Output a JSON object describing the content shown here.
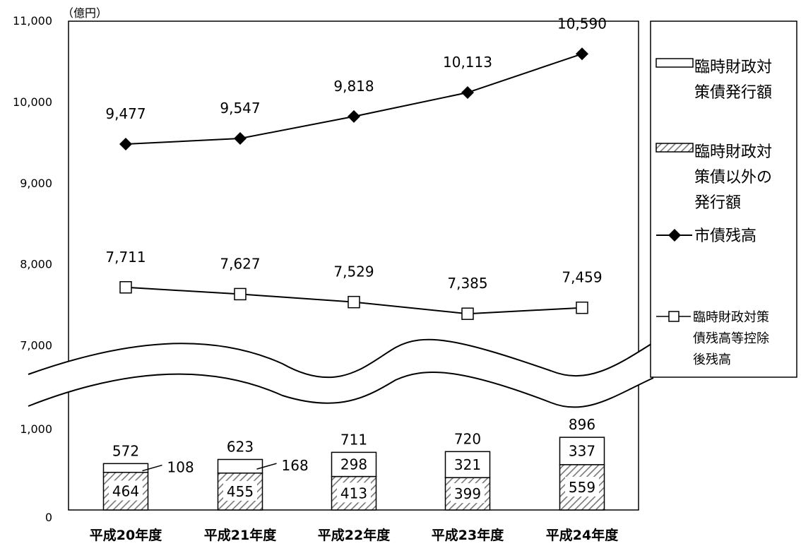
{
  "chart_data": {
    "type": "bar+line",
    "unit_label": "（億円）",
    "categories": [
      "平成20年度",
      "平成21年度",
      "平成22年度",
      "平成23年度",
      "平成24年度"
    ],
    "y_ticks_upper": [
      "11,000",
      "10,000",
      "9,000",
      "8,000",
      "7,000"
    ],
    "y_ticks_lower": [
      "1,000",
      "0"
    ],
    "bar_series": [
      {
        "name": "臨時財政対策債以外の発行額",
        "pattern": "hatched",
        "values": [
          464,
          455,
          413,
          399,
          559
        ],
        "labels": [
          "464",
          "455",
          "413",
          "399",
          "559"
        ]
      },
      {
        "name": "臨時財政対策債発行額",
        "pattern": "white",
        "values": [
          108,
          168,
          298,
          321,
          337
        ],
        "labels": [
          "108",
          "168",
          "298",
          "321",
          "337"
        ]
      }
    ],
    "bar_totals": [
      572,
      623,
      711,
      720,
      896
    ],
    "bar_total_labels": [
      "572",
      "623",
      "711",
      "720",
      "896"
    ],
    "line_series": [
      {
        "name": "市債残高",
        "marker": "filled-diamond",
        "values": [
          9477,
          9547,
          9818,
          10113,
          10590
        ],
        "labels": [
          "9,477",
          "9,547",
          "9,818",
          "10,113",
          "10,590"
        ]
      },
      {
        "name": "臨時財政対策債残高等控除後残高",
        "marker": "hollow-square",
        "values": [
          7711,
          7627,
          7529,
          7385,
          7459
        ],
        "labels": [
          "7,711",
          "7,627",
          "7,529",
          "7,385",
          "7,459"
        ]
      }
    ],
    "legend": {
      "position": "right",
      "items": [
        {
          "lines": [
            "臨時財政対",
            "策債発行額"
          ]
        },
        {
          "lines": [
            "臨時財政対",
            "策債以外の",
            "発行額"
          ]
        },
        {
          "lines": [
            "市債残高"
          ]
        },
        {
          "lines": [
            "臨時財政対策",
            "債残高等控除",
            "後残高"
          ]
        }
      ]
    },
    "axis_break": true
  }
}
